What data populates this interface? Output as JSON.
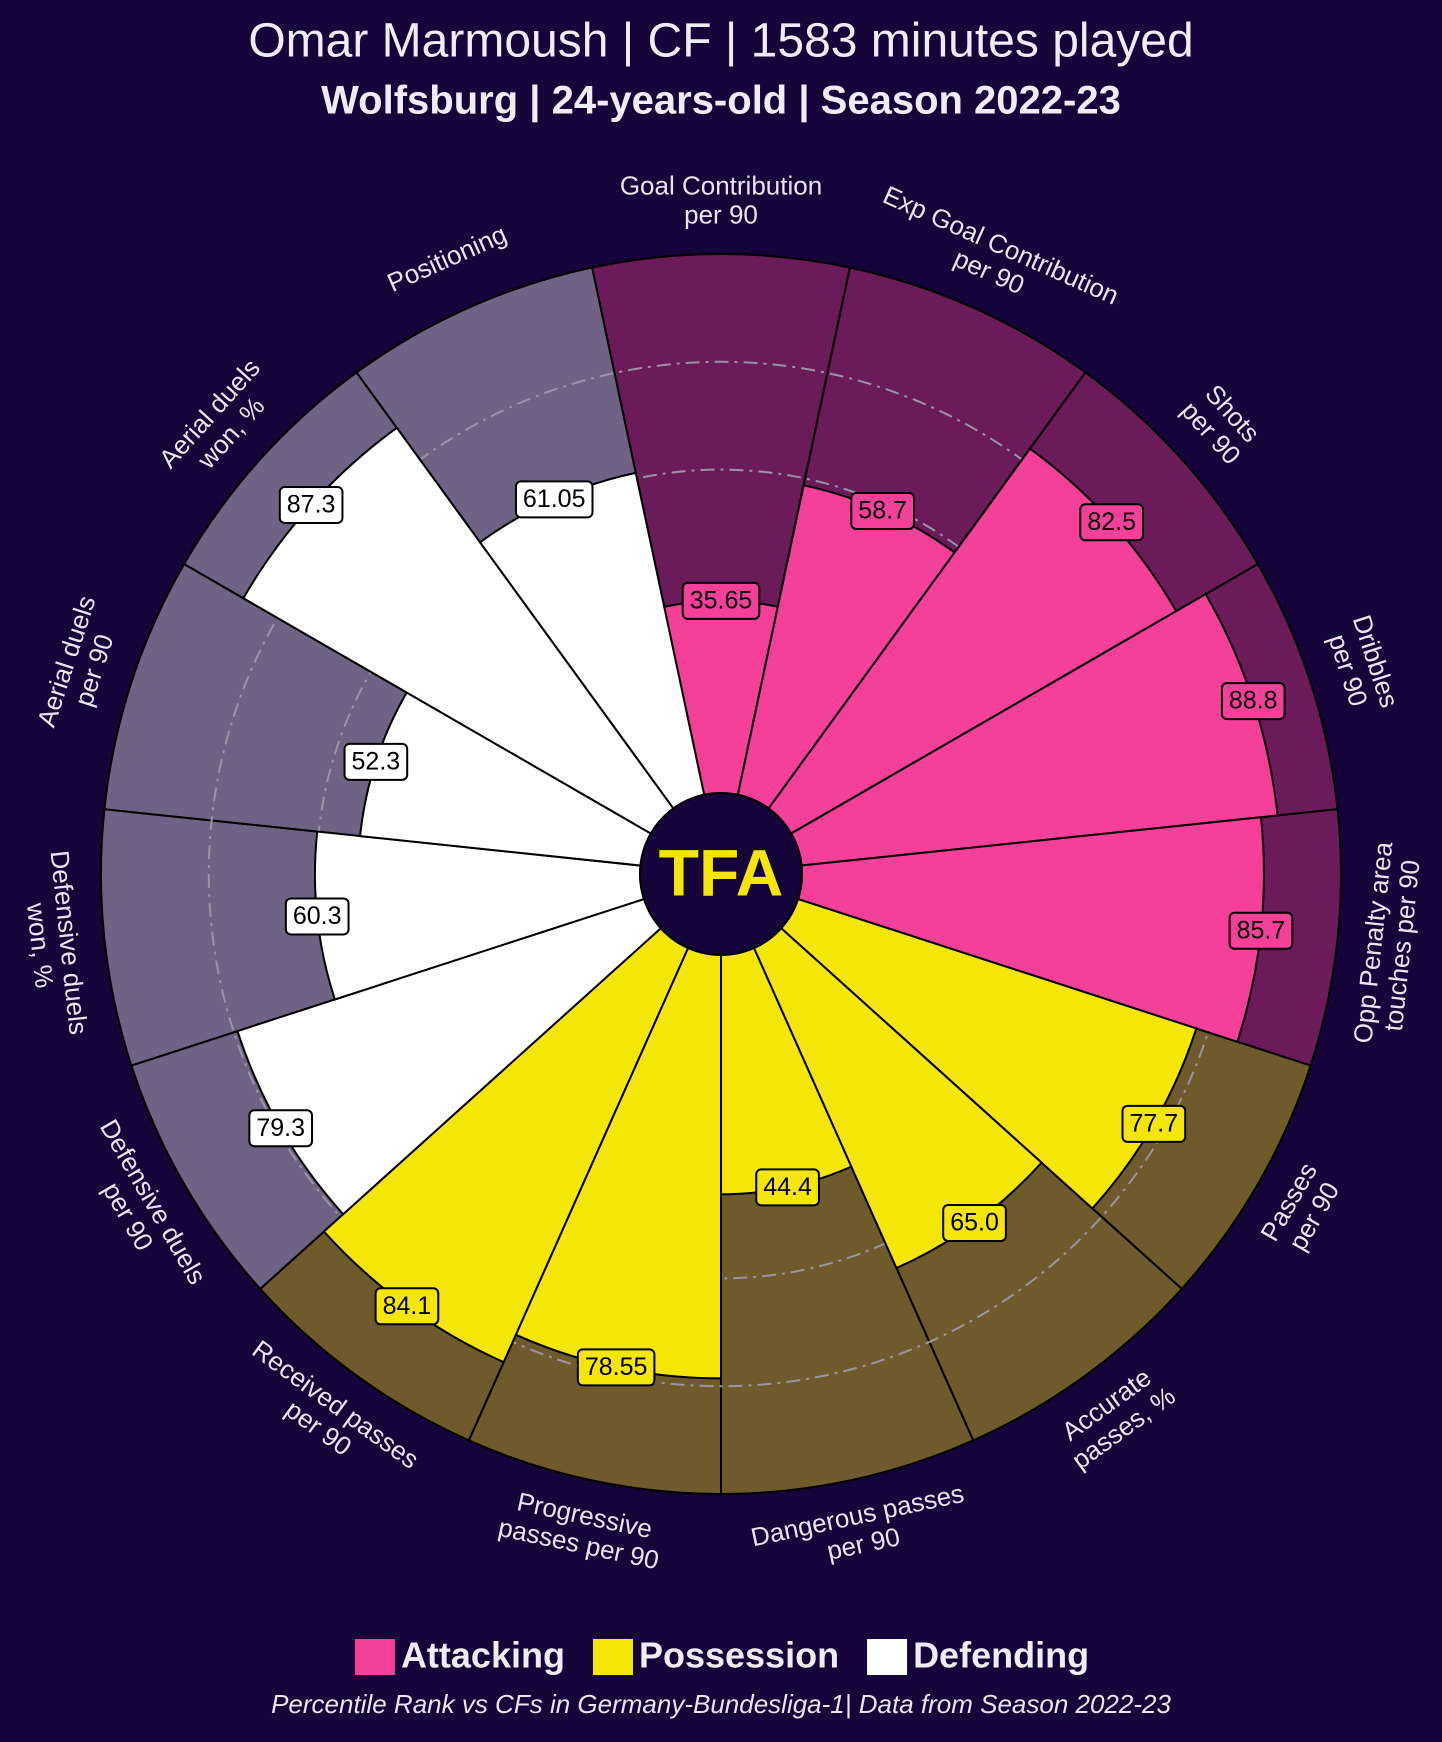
{
  "chart_data": {
    "type": "pizza",
    "title": "Omar Marmoush | CF | 1583 minutes played",
    "subtitle": "Wolfsburg | 24-years-old | Season 2022-23",
    "note": "Percentile Rank vs CFs in Germany-Bundesliga-1| Data from Season 2022-23",
    "logo": "TFA",
    "ylim": [
      0,
      100
    ],
    "yticks": [
      60,
      80
    ],
    "grid": true,
    "series": [
      {
        "name": "Attacking",
        "color": "#f5409a",
        "background": "#6b1a5a",
        "categories": [
          "Goal Contribution\nper 90",
          "Exp Goal Contribution\nper 90",
          "Shots\nper 90",
          "Dribbles\nper 90",
          "Opp Penalty area\ntouches per 90"
        ],
        "values": [
          35.65,
          58.7,
          82.5,
          88.8,
          85.7
        ],
        "value_labels": [
          "35.65",
          "58.7",
          "82.5",
          "88.8",
          "85.7"
        ]
      },
      {
        "name": "Possession",
        "color": "#f5e60a",
        "background": "#6e5a2a",
        "categories": [
          "Passes\nper 90",
          "Accurate\npasses, %",
          "Dangerous passes\nper 90",
          "Progressive\npasses per 90",
          "Received passes\nper 90"
        ],
        "values": [
          77.7,
          65.0,
          44.4,
          78.55,
          84.1
        ],
        "value_labels": [
          "77.7",
          "65.0",
          "44.4",
          "78.55",
          "84.1"
        ]
      },
      {
        "name": "Defending",
        "color": "#ffffff",
        "background": "#6e6385",
        "categories": [
          "Defensive duels\nper 90",
          "Defensive duels\nwon, %",
          "Aerial duels\nper 90",
          "Aerial duels\nwon, %",
          "Positioning"
        ],
        "values": [
          79.3,
          60.3,
          52.3,
          87.3,
          61.05
        ],
        "value_labels": [
          "79.3",
          "60.3",
          "52.3",
          "87.3",
          "61.05"
        ]
      }
    ]
  }
}
